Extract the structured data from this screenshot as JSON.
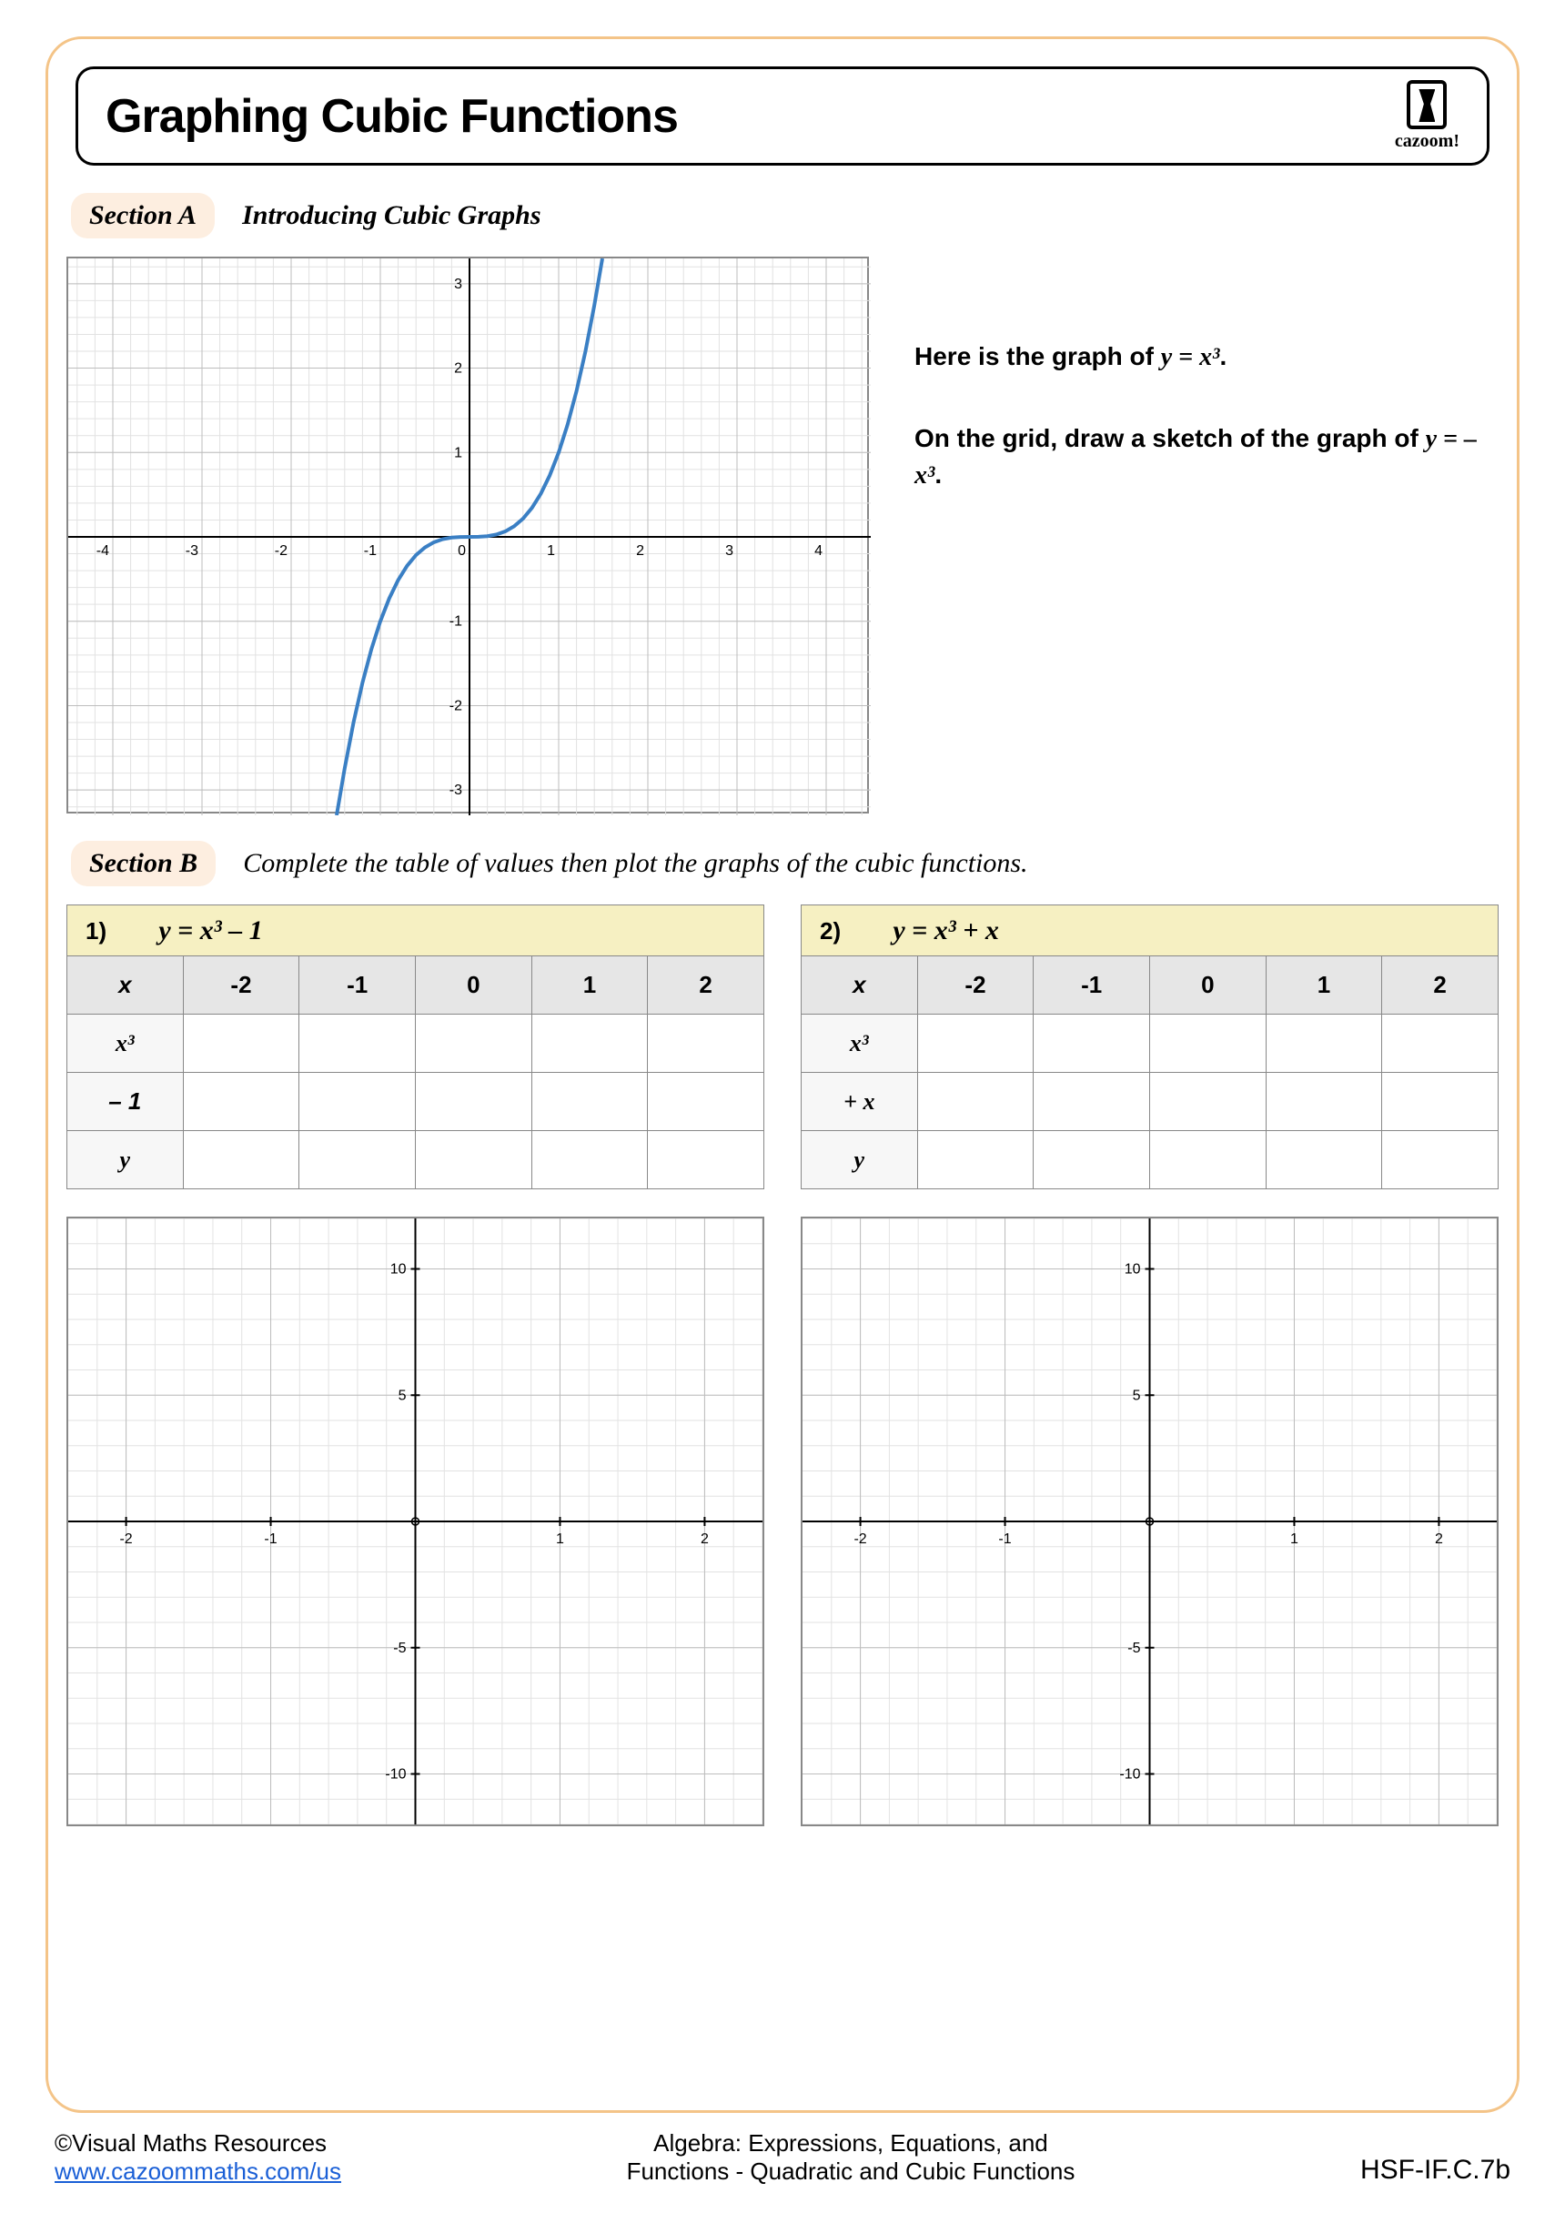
{
  "title": "Graphing Cubic Functions",
  "logo_text": "cazoom!",
  "sectionA": {
    "label": "Section A",
    "title": "Introducing Cubic Graphs",
    "instruction1_prefix": "Here is the graph of  ",
    "instruction1_eq": "y  = x³",
    "instruction1_suffix": ".",
    "instruction2_prefix": "On the grid, draw a sketch of the graph of ",
    "instruction2_eq": "y  = –x³",
    "instruction2_suffix": "."
  },
  "main_chart": {
    "type": "line",
    "xlim": [
      -4.5,
      4.5
    ],
    "ylim": [
      -3.3,
      3.3
    ],
    "xticks": [
      -4,
      -3,
      -2,
      -1,
      0,
      1,
      2,
      3,
      4
    ],
    "yticks": [
      -3,
      -2,
      -1,
      1,
      2,
      3
    ],
    "minor_step": 0.2,
    "major_step": 1,
    "line_color": "#3a7fc4",
    "line_width": 4,
    "grid_minor_color": "#e2e2e2",
    "grid_major_color": "#bdbdbd",
    "axis_color": "#000000",
    "background_color": "#ffffff",
    "label_fontsize": 16,
    "curve_points": [
      [
        -1.49,
        -3.3
      ],
      [
        -1.4,
        -2.744
      ],
      [
        -1.3,
        -2.197
      ],
      [
        -1.2,
        -1.728
      ],
      [
        -1.1,
        -1.331
      ],
      [
        -1.0,
        -1.0
      ],
      [
        -0.9,
        -0.729
      ],
      [
        -0.8,
        -0.512
      ],
      [
        -0.7,
        -0.343
      ],
      [
        -0.6,
        -0.216
      ],
      [
        -0.5,
        -0.125
      ],
      [
        -0.4,
        -0.064
      ],
      [
        -0.3,
        -0.027
      ],
      [
        -0.2,
        -0.008
      ],
      [
        -0.1,
        -0.001
      ],
      [
        0,
        0
      ],
      [
        0.1,
        0.001
      ],
      [
        0.2,
        0.008
      ],
      [
        0.3,
        0.027
      ],
      [
        0.4,
        0.064
      ],
      [
        0.5,
        0.125
      ],
      [
        0.6,
        0.216
      ],
      [
        0.7,
        0.343
      ],
      [
        0.8,
        0.512
      ],
      [
        0.9,
        0.729
      ],
      [
        1.0,
        1.0
      ],
      [
        1.1,
        1.331
      ],
      [
        1.2,
        1.728
      ],
      [
        1.3,
        2.197
      ],
      [
        1.4,
        2.744
      ],
      [
        1.49,
        3.3
      ]
    ]
  },
  "sectionB": {
    "label": "Section B",
    "title": "Complete the table of values then plot the graphs of the cubic functions."
  },
  "problems": [
    {
      "num": "1)",
      "equation": "y = x³ – 1",
      "x_header": "x",
      "x_values": [
        "-2",
        "-1",
        "0",
        "1",
        "2"
      ],
      "rows": [
        {
          "label": "x³",
          "cells": [
            "",
            "",
            "",
            "",
            ""
          ]
        },
        {
          "label": "– 1",
          "cells": [
            "",
            "",
            "",
            "",
            ""
          ]
        },
        {
          "label": "y",
          "cells": [
            "",
            "",
            "",
            "",
            ""
          ]
        }
      ]
    },
    {
      "num": "2)",
      "equation": "y = x³ + x",
      "x_header": "x",
      "x_values": [
        "-2",
        "-1",
        "0",
        "1",
        "2"
      ],
      "rows": [
        {
          "label": "x³",
          "cells": [
            "",
            "",
            "",
            "",
            ""
          ]
        },
        {
          "label": "+ x",
          "cells": [
            "",
            "",
            "",
            "",
            ""
          ]
        },
        {
          "label": "y",
          "cells": [
            "",
            "",
            "",
            "",
            ""
          ]
        }
      ]
    }
  ],
  "small_chart": {
    "type": "grid",
    "xlim": [
      -2.4,
      2.4
    ],
    "ylim": [
      -12,
      12
    ],
    "xticks": [
      -2,
      -1,
      1,
      2
    ],
    "yticks": [
      -10,
      -5,
      5,
      10
    ],
    "minor_x_step": 0.2,
    "minor_y_step": 1,
    "grid_minor_color": "#e2e2e2",
    "grid_major_color": "#bdbdbd",
    "axis_color": "#000000",
    "label_fontsize": 16
  },
  "footer": {
    "copyright": "©Visual Maths Resources",
    "url": "www.cazoommaths.com/us",
    "center1": "Algebra: Expressions, Equations, and",
    "center2": "Functions - Quadratic and Cubic Functions",
    "code": "HSF-IF.C.7b"
  },
  "colors": {
    "page_border": "#f4c488",
    "section_bg": "#fdeee0",
    "table_header_bg": "#f6f0c2",
    "table_subheader_bg": "#e6e6e6"
  }
}
